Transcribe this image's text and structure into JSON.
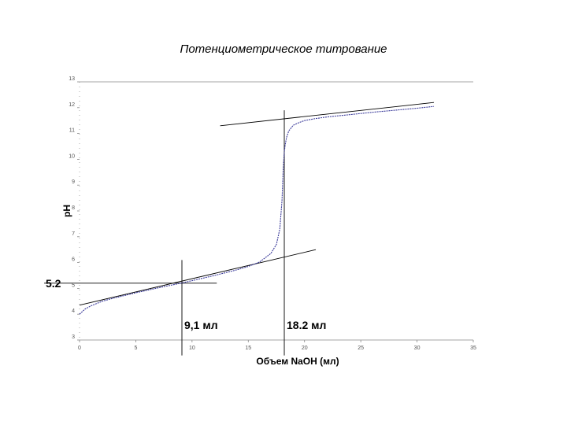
{
  "chart_data": {
    "type": "line",
    "title": "Потенциометрическое титрование",
    "xlabel": "Объем NaOH (мл)",
    "ylabel": "pH",
    "xlim": [
      0,
      35
    ],
    "ylim": [
      3,
      13
    ],
    "x_ticks": [
      "0",
      "5",
      "10",
      "15",
      "20",
      "25",
      "30",
      "35"
    ],
    "y_ticks": [
      "3",
      "4",
      "5",
      "6",
      "7",
      "8",
      "9",
      "10",
      "11",
      "12",
      "13"
    ],
    "grid": false,
    "series": [
      {
        "color": "#3a3a9a",
        "style": "dotted",
        "x": [
          0,
          0.5,
          1,
          2,
          3,
          5,
          7,
          9,
          10,
          12,
          14,
          15,
          16,
          17,
          17.5,
          17.8,
          18.0,
          18.1,
          18.2,
          18.3,
          18.4,
          18.6,
          19,
          19.5,
          20,
          21,
          22,
          24,
          26,
          28,
          30,
          31.5
        ],
        "y": [
          4.0,
          4.2,
          4.32,
          4.5,
          4.62,
          4.83,
          5.02,
          5.2,
          5.3,
          5.5,
          5.72,
          5.85,
          6.02,
          6.35,
          6.7,
          7.3,
          8.4,
          9.6,
          10.3,
          10.6,
          10.85,
          11.1,
          11.32,
          11.42,
          11.5,
          11.58,
          11.64,
          11.73,
          11.82,
          11.9,
          11.98,
          12.05
        ]
      }
    ],
    "tangent_lines": [
      {
        "x": [
          0,
          21
        ],
        "y": [
          4.35,
          6.5
        ]
      },
      {
        "x": [
          12.5,
          31.5
        ],
        "y": [
          11.3,
          12.2
        ]
      }
    ],
    "reference_lines": [
      {
        "orientation": "horizontal",
        "y": 5.2,
        "x_range": [
          0,
          12.2
        ]
      },
      {
        "orientation": "vertical",
        "x": 9.1,
        "y_range": [
          2.4,
          6.1
        ]
      },
      {
        "orientation": "vertical",
        "x": 18.2,
        "y_range": [
          2.4,
          11.9
        ]
      }
    ],
    "annotations": [
      {
        "text": "5.2",
        "anchor": "y-axis-left",
        "y": 5.2
      },
      {
        "text": "9,1 мл",
        "x": 9.1,
        "y": 3.55
      },
      {
        "text": "18.2 мл",
        "x": 18.2,
        "y": 3.55
      }
    ]
  }
}
